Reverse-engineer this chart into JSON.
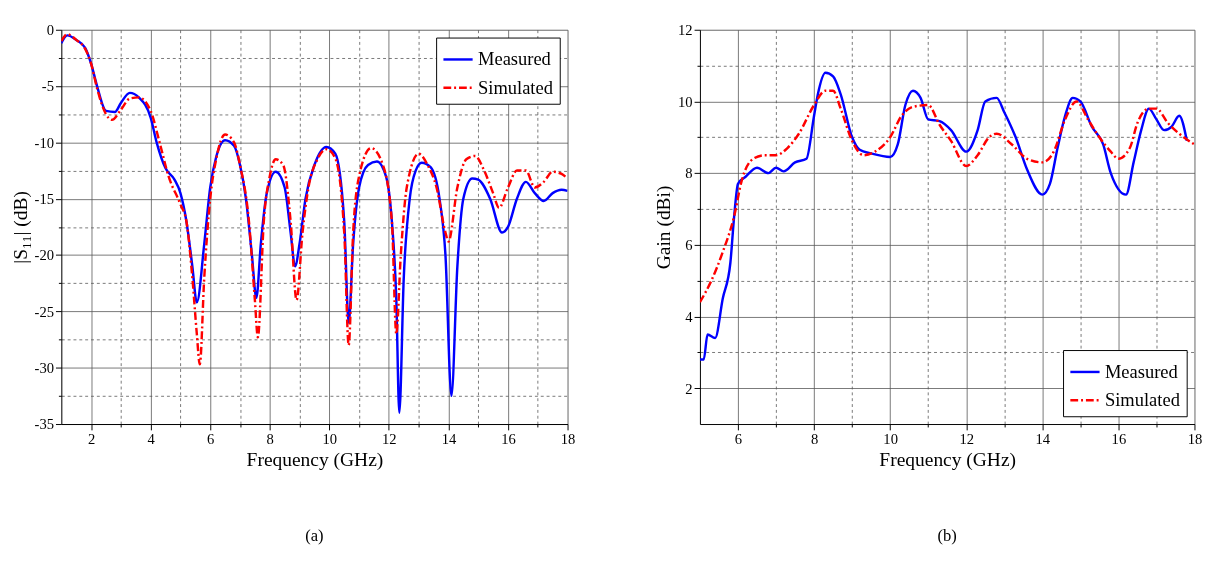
{
  "chart_data": [
    {
      "type": "line",
      "title": "(a)",
      "xlabel": "Frequency (GHz)",
      "ylabel": "|S₁₁| (dB)",
      "legend": "top right",
      "grid": true,
      "xlim": [
        1,
        18
      ],
      "xticks": [
        2,
        {
          "value": 3,
          "label": null
        },
        4,
        {
          "value": 5,
          "label": null
        },
        6,
        {
          "value": 7,
          "label": null
        },
        8,
        {
          "value": 9,
          "label": null
        },
        10,
        {
          "value": 11,
          "label": null
        },
        12,
        {
          "value": 13,
          "label": null
        },
        14,
        {
          "value": 15,
          "label": null
        },
        16,
        {
          "value": 17,
          "label": null
        },
        18
      ],
      "ylim": [
        -35,
        0
      ],
      "yticks": [
        -35,
        {
          "value": -32.5,
          "label": null
        },
        -30,
        {
          "value": -27.5,
          "label": null
        },
        -25,
        {
          "value": -22.5,
          "label": null
        },
        -20,
        {
          "value": -17.5,
          "label": null
        },
        -15,
        {
          "value": -12.5,
          "label": null
        },
        -10,
        {
          "value": -7.5,
          "label": null
        },
        -5,
        {
          "value": -2.5,
          "label": null
        },
        0
      ],
      "series": [
        {
          "name": "Measured",
          "color": "#0000ff",
          "line_style": "solid",
          "x": [
            1.0,
            1.2,
            1.5,
            1.8,
            2.0,
            2.2,
            2.5,
            2.8,
            3.0,
            3.3,
            3.6,
            4.0,
            4.2,
            4.5,
            4.8,
            5.0,
            5.2,
            5.4,
            5.55,
            5.8,
            6.0,
            6.2,
            6.5,
            6.8,
            7.0,
            7.2,
            7.4,
            7.55,
            7.7,
            7.9,
            8.2,
            8.5,
            8.7,
            8.85,
            9.0,
            9.2,
            9.5,
            9.9,
            10.2,
            10.5,
            10.65,
            10.8,
            11.0,
            11.3,
            11.6,
            11.9,
            12.1,
            12.25,
            12.35,
            12.5,
            12.7,
            12.9,
            13.1,
            13.4,
            13.7,
            13.9,
            14.1,
            14.3,
            14.5,
            14.8,
            15.0,
            15.4,
            15.8,
            16.0,
            16.3,
            16.6,
            16.9,
            17.2,
            17.5,
            17.8,
            18.0
          ],
          "values": [
            -1.2,
            -0.5,
            -0.9,
            -1.6,
            -3.0,
            -5.0,
            -7.2,
            -7.3,
            -6.5,
            -5.6,
            -6.0,
            -7.8,
            -10,
            -12.3,
            -13.3,
            -14.5,
            -17,
            -21,
            -24.2,
            -19,
            -14,
            -11.3,
            -9.8,
            -10.3,
            -12,
            -15,
            -20,
            -23.8,
            -19,
            -14.5,
            -12.6,
            -14,
            -18,
            -21,
            -19,
            -15,
            -12,
            -10.4,
            -11,
            -17,
            -26,
            -19,
            -14,
            -12,
            -11.7,
            -13,
            -17,
            -24,
            -34,
            -22,
            -15,
            -12.5,
            -11.8,
            -12.2,
            -15,
            -20,
            -32.5,
            -21,
            -15,
            -13.2,
            -13.3,
            -15,
            -18,
            -17.5,
            -15,
            -13.5,
            -14.5,
            -15.2,
            -14.5,
            -14.2,
            -14.3
          ]
        },
        {
          "name": "Simulated",
          "color": "#ff0000",
          "line_style": "dashed",
          "x": [
            1.0,
            1.2,
            1.5,
            1.8,
            2.0,
            2.2,
            2.5,
            2.7,
            3.0,
            3.3,
            3.6,
            4.0,
            4.3,
            4.6,
            5.0,
            5.2,
            5.4,
            5.55,
            5.65,
            5.8,
            6.0,
            6.2,
            6.5,
            6.8,
            7.0,
            7.3,
            7.5,
            7.6,
            7.8,
            8.0,
            8.2,
            8.45,
            8.7,
            8.9,
            9.1,
            9.3,
            9.6,
            9.9,
            10.2,
            10.5,
            10.65,
            10.8,
            11.0,
            11.4,
            11.8,
            12.1,
            12.25,
            12.4,
            12.6,
            13.0,
            13.3,
            13.6,
            13.9,
            14.0,
            14.3,
            14.6,
            14.9,
            15.2,
            15.5,
            15.7,
            16.0,
            16.3,
            16.6,
            16.9,
            17.2,
            17.5,
            17.8,
            18.0
          ],
          "values": [
            -1.0,
            -0.4,
            -0.9,
            -1.7,
            -3.0,
            -5.2,
            -7.5,
            -8.0,
            -7.1,
            -6.1,
            -6.0,
            -7.2,
            -10,
            -13,
            -15.5,
            -17,
            -22,
            -27,
            -29.7,
            -22,
            -15,
            -11.5,
            -9.3,
            -10,
            -12,
            -17,
            -24,
            -27.3,
            -17,
            -13,
            -11.5,
            -12,
            -17,
            -24,
            -18,
            -14,
            -11.5,
            -10.6,
            -11.4,
            -18,
            -28,
            -18,
            -13,
            -10.5,
            -12,
            -17,
            -27,
            -20,
            -14,
            -11,
            -12,
            -14,
            -18,
            -18.8,
            -14,
            -11.5,
            -11.2,
            -12.5,
            -14.5,
            -15.8,
            -14,
            -12.5,
            -12.5,
            -14,
            -13.5,
            -12.6,
            -12.8,
            -13.2
          ]
        }
      ]
    },
    {
      "type": "line",
      "title": "(b)",
      "xlabel": "Frequency (GHz)",
      "ylabel": "Gain (dBi)",
      "legend": "bottom right",
      "grid": true,
      "xlim": [
        5,
        18
      ],
      "xticks": [
        6,
        {
          "value": 7,
          "label": null
        },
        8,
        {
          "value": 9,
          "label": null
        },
        10,
        {
          "value": 11,
          "label": null
        },
        12,
        {
          "value": 13,
          "label": null
        },
        14,
        {
          "value": 15,
          "label": null
        },
        16,
        {
          "value": 17,
          "label": null
        },
        18
      ],
      "ylim": [
        1,
        12
      ],
      "yticks": [
        2,
        {
          "value": 3,
          "label": null
        },
        4,
        {
          "value": 5,
          "label": null
        },
        6,
        {
          "value": 7,
          "label": null
        },
        8,
        {
          "value": 9,
          "label": null
        },
        10,
        {
          "value": 11,
          "label": null
        },
        12
      ],
      "series": [
        {
          "name": "Measured",
          "color": "#0000ff",
          "line_style": "solid",
          "x": [
            5.0,
            5.1,
            5.2,
            5.4,
            5.6,
            5.8,
            5.9,
            6.0,
            6.2,
            6.5,
            6.8,
            7.0,
            7.2,
            7.5,
            7.8,
            8.0,
            8.1,
            8.3,
            8.5,
            8.7,
            9.0,
            9.2,
            9.5,
            10.0,
            10.2,
            10.4,
            10.6,
            10.8,
            11.0,
            11.3,
            11.6,
            12.0,
            12.3,
            12.5,
            12.8,
            13.0,
            13.3,
            13.6,
            14.0,
            14.2,
            14.4,
            14.6,
            14.8,
            15.0,
            15.3,
            15.6,
            15.8,
            16.2,
            16.4,
            16.6,
            16.8,
            17.0,
            17.2,
            17.4,
            17.6,
            17.8
          ],
          "values": [
            2.8,
            2.8,
            3.5,
            3.4,
            4.5,
            5.5,
            6.8,
            7.7,
            7.9,
            8.15,
            8.0,
            8.15,
            8.05,
            8.3,
            8.4,
            9.6,
            10.2,
            10.8,
            10.7,
            10.2,
            9.0,
            8.65,
            8.55,
            8.45,
            8.8,
            9.9,
            10.3,
            10.1,
            9.5,
            9.45,
            9.2,
            8.6,
            9.2,
            10.0,
            10.1,
            9.7,
            9.0,
            8.1,
            7.4,
            7.7,
            8.7,
            9.6,
            10.1,
            10.0,
            9.3,
            8.8,
            8.0,
            7.4,
            8.3,
            9.2,
            9.8,
            9.5,
            9.2,
            9.3,
            9.6,
            8.9
          ]
        },
        {
          "name": "Simulated",
          "color": "#ff0000",
          "line_style": "dashed",
          "x": [
            5.0,
            5.3,
            5.6,
            5.9,
            6.1,
            6.4,
            6.7,
            7.0,
            7.3,
            7.6,
            8.0,
            8.3,
            8.5,
            8.7,
            9.0,
            9.3,
            9.6,
            10.0,
            10.3,
            10.6,
            11.0,
            11.3,
            11.6,
            12.0,
            12.3,
            12.6,
            12.8,
            13.2,
            13.6,
            14.0,
            14.3,
            14.6,
            14.9,
            15.2,
            15.5,
            15.8,
            16.0,
            16.3,
            16.5,
            16.8,
            17.0,
            17.3,
            17.6,
            18.0
          ],
          "values": [
            4.4,
            5.0,
            5.8,
            6.8,
            7.8,
            8.4,
            8.5,
            8.5,
            8.7,
            9.1,
            9.9,
            10.3,
            10.3,
            9.8,
            8.9,
            8.5,
            8.6,
            9.0,
            9.6,
            9.85,
            9.9,
            9.35,
            8.9,
            8.2,
            8.5,
            9.0,
            9.1,
            8.8,
            8.4,
            8.3,
            8.6,
            9.5,
            10.0,
            9.5,
            9.0,
            8.6,
            8.4,
            8.7,
            9.4,
            9.8,
            9.8,
            9.4,
            9.1,
            8.8
          ]
        }
      ]
    }
  ]
}
